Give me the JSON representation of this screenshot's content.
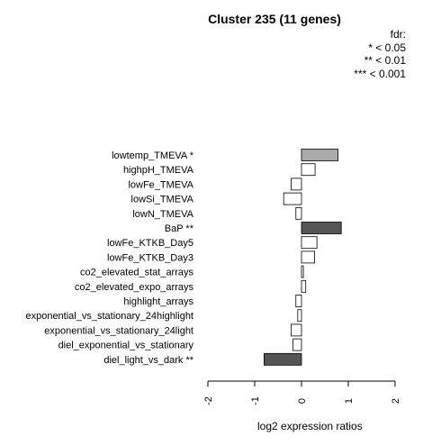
{
  "chart_data": {
    "type": "bar",
    "orientation": "horizontal",
    "title": "Cluster 235 (11 genes)",
    "xlabel": "log2 expression ratios",
    "ylabel": "",
    "xlim": [
      -2,
      2
    ],
    "xticks": [
      "-2",
      "-1",
      "0",
      "1",
      "2"
    ],
    "legend": {
      "title": "fdr:",
      "entries": [
        "* < 0.05",
        "** < 0.01",
        "*** < 0.001"
      ],
      "placement": "top-right"
    },
    "categories": [
      "lowtemp_TMEVA *",
      "highpH_TMEVA",
      "lowFe_TMEVA",
      "lowSi_TMEVA",
      "lowN_TMEVA",
      "BaP **",
      "lowFe_KTKB_Day5",
      "lowFe_KTKB_Day3",
      "co2_elevated_stat_arrays",
      "co2_elevated_expo_arrays",
      "highlight_arrays",
      "exponential_vs_stationary_24highlight",
      "exponential_vs_stationary_24light",
      "diel_exponential_vs_stationary",
      "diel_light_vs_dark **"
    ],
    "values": [
      0.78,
      0.29,
      -0.22,
      -0.38,
      -0.12,
      0.85,
      0.33,
      0.28,
      0.04,
      0.09,
      -0.12,
      -0.08,
      -0.22,
      -0.18,
      -0.8
    ],
    "colors": [
      "#aaaaaa",
      "#ffffff",
      "#ffffff",
      "#ffffff",
      "#ffffff",
      "#555555",
      "#ffffff",
      "#ffffff",
      "#ffffff",
      "#ffffff",
      "#ffffff",
      "#ffffff",
      "#ffffff",
      "#ffffff",
      "#555555"
    ]
  }
}
